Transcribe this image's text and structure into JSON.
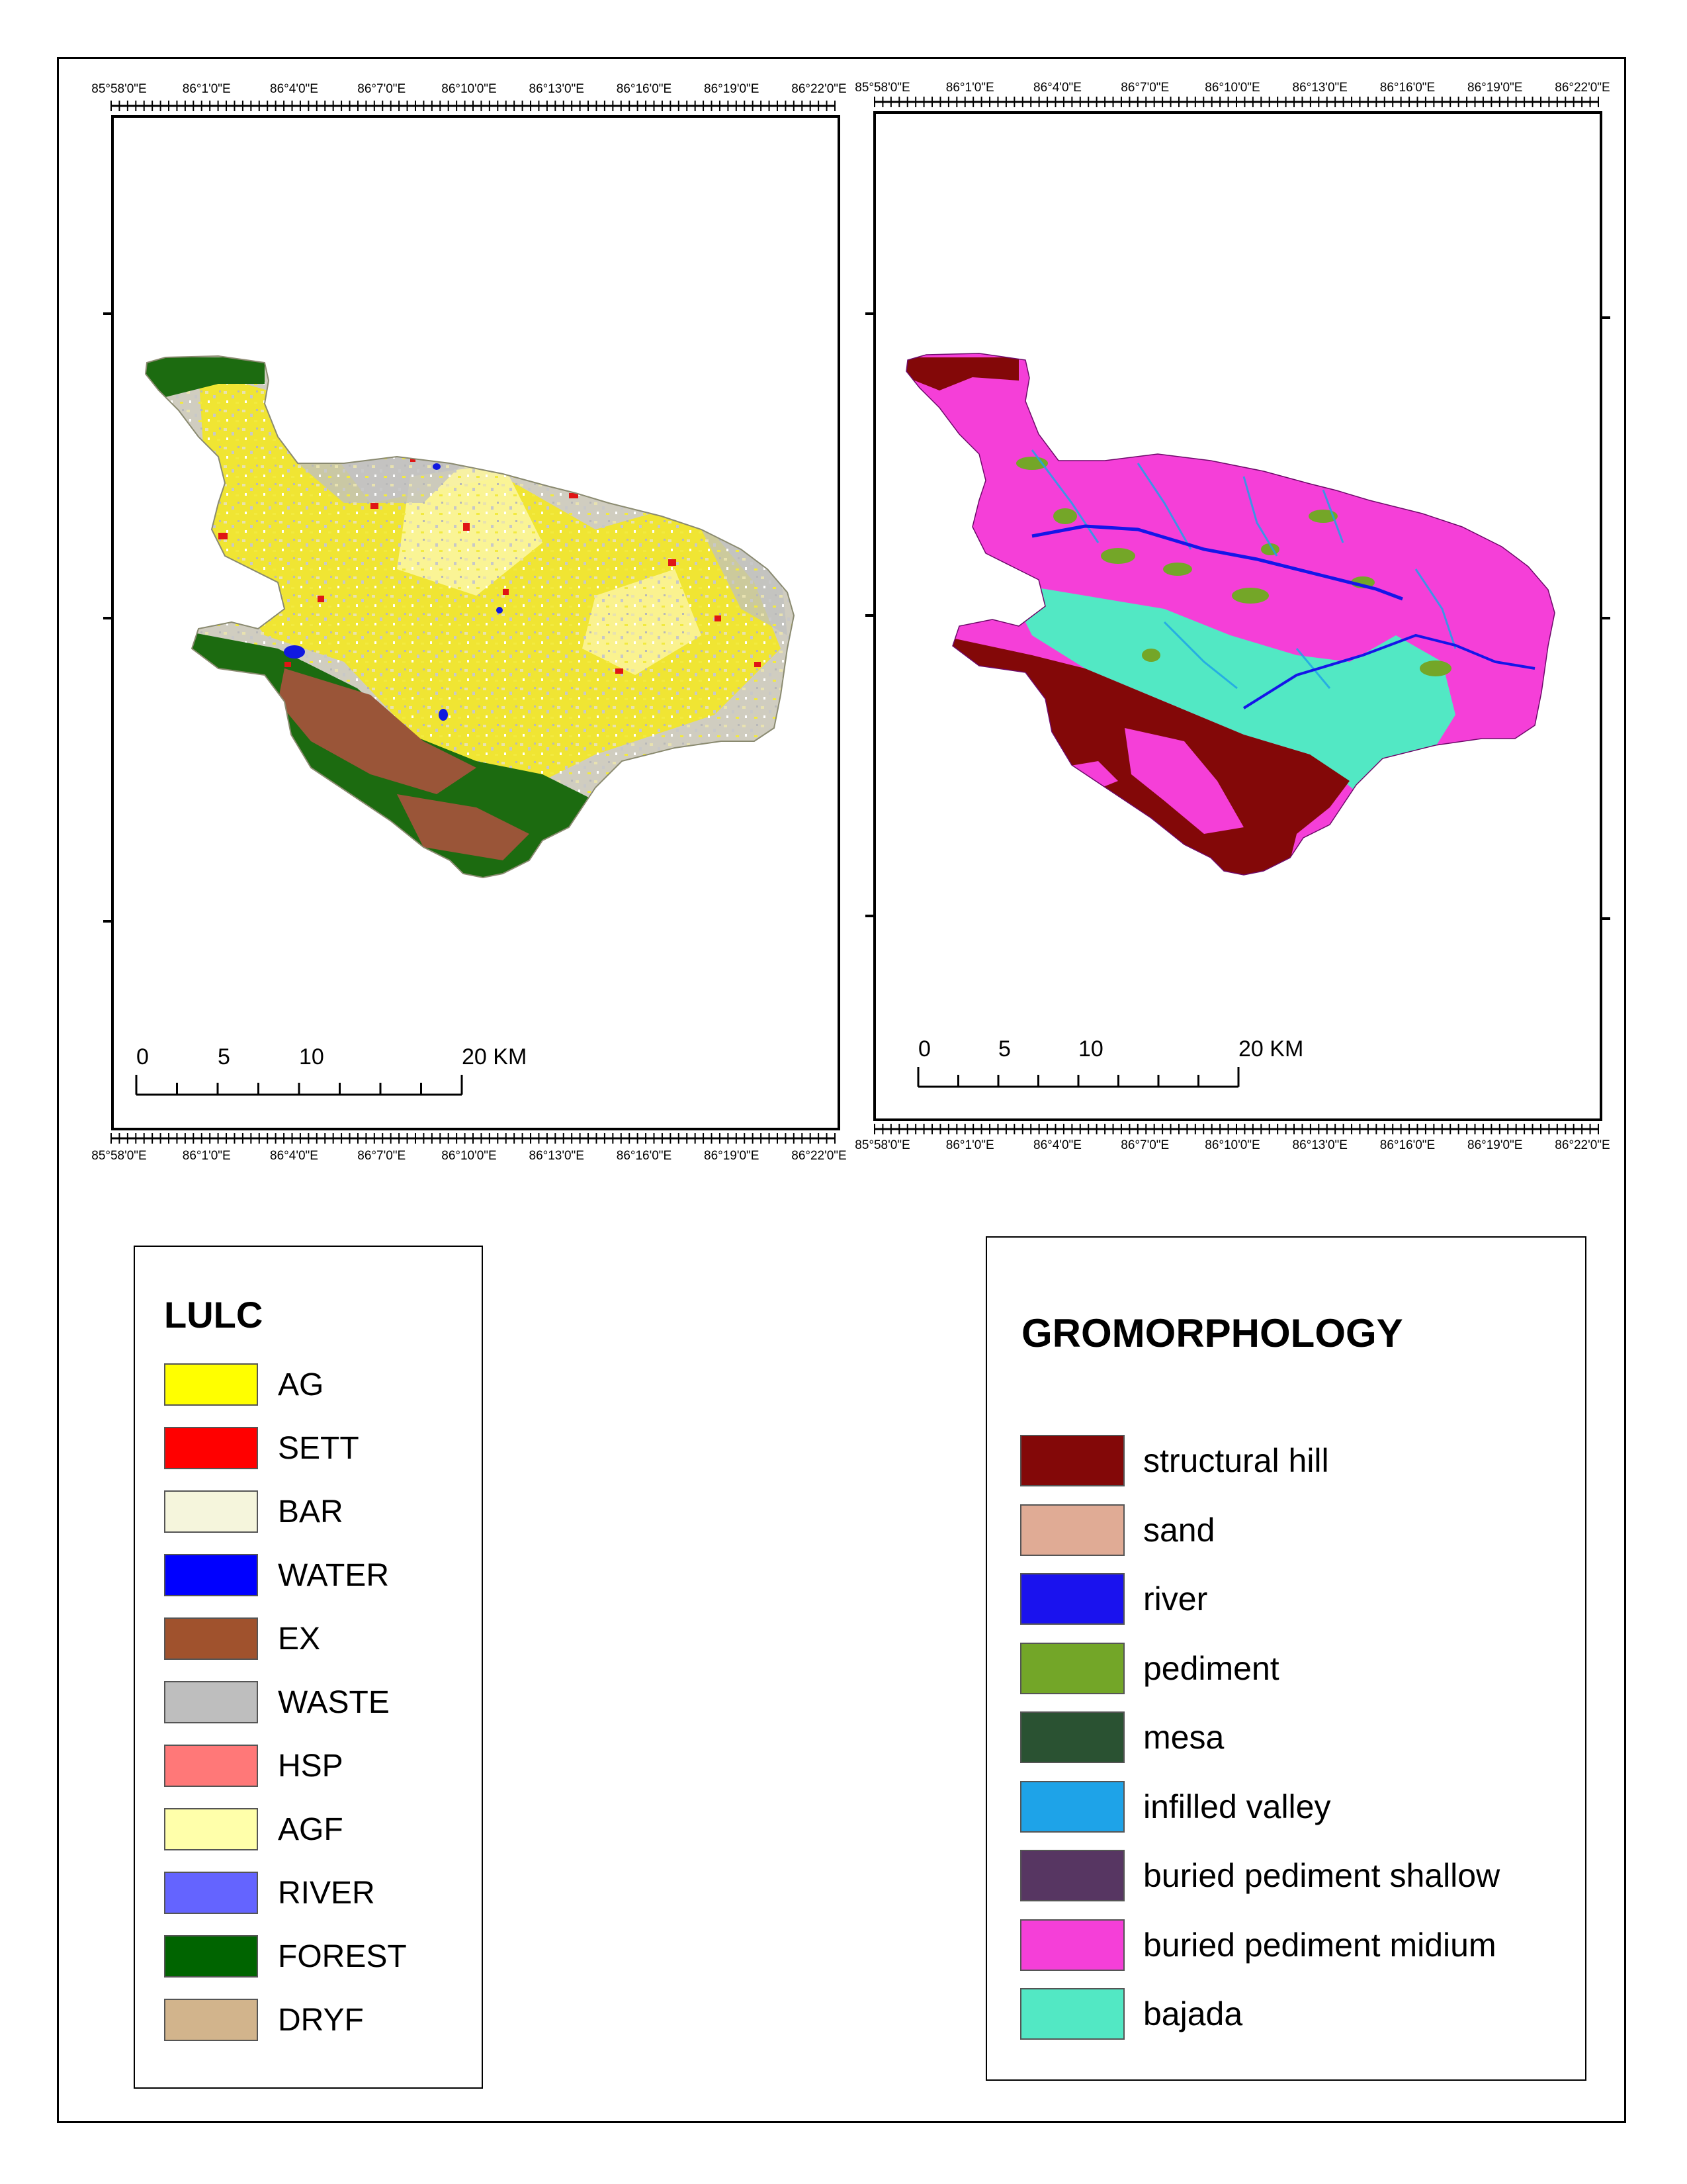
{
  "maps": {
    "left": {
      "name": "lulc-map",
      "top_ticks": [
        "85°58'0\"E",
        "86°1'0\"E",
        "86°4'0\"E",
        "86°7'0\"E",
        "86°10'0\"E",
        "86°13'0\"E",
        "86°16'0\"E",
        "86°19'0\"E",
        "86°22'0\"E"
      ],
      "bottom_ticks": [
        "85°58'0\"E",
        "86°1'0\"E",
        "86°4'0\"E",
        "86°7'0\"E",
        "86°10'0\"E",
        "86°13'0\"E",
        "86°16'0\"E",
        "86°19'0\"E",
        "86°22'0\"E"
      ],
      "scale_labels": [
        "0",
        "5",
        "10",
        "20 KM"
      ],
      "colors": {
        "base": "#d0cdc0",
        "ag": "#f6e91a",
        "agf": "#fbf5a0",
        "forest": "#1c6b10",
        "ex": "#9a5538",
        "sett": "#e01515",
        "water": "#1018e0",
        "waste": "#c0c0c0",
        "bar": "#efefe1",
        "dryf": "#d8b88a"
      }
    },
    "right": {
      "name": "geomorphology-map",
      "top_ticks": [
        "85°58'0\"E",
        "86°1'0\"E",
        "86°4'0\"E",
        "86°7'0\"E",
        "86°10'0\"E",
        "86°13'0\"E",
        "86°16'0\"E",
        "86°19'0\"E",
        "86°22'0\"E"
      ],
      "bottom_ticks": [
        "85°58'0\"E",
        "86°1'0\"E",
        "86°4'0\"E",
        "86°7'0\"E",
        "86°10'0\"E",
        "86°13'0\"E",
        "86°16'0\"E",
        "86°19'0\"E",
        "86°22'0\"E"
      ],
      "scale_labels": [
        "0",
        "5",
        "10",
        "20 KM"
      ],
      "colors": {
        "pediment_midium": "#f53fd8",
        "structural_hill": "#830808",
        "bajada": "#52e8c4",
        "pediment": "#74a628",
        "river": "#1515e8",
        "infilled": "#1ea3e8"
      }
    }
  },
  "lulc_legend": {
    "title": "LULC",
    "items": [
      {
        "label": "AG",
        "color": "#ffff00"
      },
      {
        "label": " SETT",
        "color": "#ff0000"
      },
      {
        "label": "BAR",
        "color": "#f5f5dc"
      },
      {
        "label": "WATER",
        "color": "#0000ff"
      },
      {
        "label": "EX",
        "color": "#a0522d"
      },
      {
        "label": "WASTE",
        "color": "#bebebe"
      },
      {
        "label": "HSP",
        "color": "#ff7878"
      },
      {
        "label": "AGF",
        "color": "#ffffaa"
      },
      {
        "label": "RIVER",
        "color": "#6464ff"
      },
      {
        "label": "FOREST",
        "color": "#006400"
      },
      {
        "label": "DRYF",
        "color": "#d2b48c"
      }
    ]
  },
  "geomorphology_legend": {
    "title": "GROMORPHOLOGY",
    "items": [
      {
        "label": "structural hill",
        "color": "#830808"
      },
      {
        "label": "sand",
        "color": "#e0ab95"
      },
      {
        "label": "river",
        "color": "#1a12ee"
      },
      {
        "label": "pediment",
        "color": "#73a628"
      },
      {
        "label": "mesa",
        "color": "#2a5232"
      },
      {
        "label": "infilled valley",
        "color": "#1ea3e8"
      },
      {
        "label": "buried pediment shallow",
        "color": "#573662"
      },
      {
        "label": "buried pediment midium",
        "color": "#f53fd8"
      },
      {
        "label": "bajada",
        "color": "#52e8c4"
      }
    ]
  }
}
